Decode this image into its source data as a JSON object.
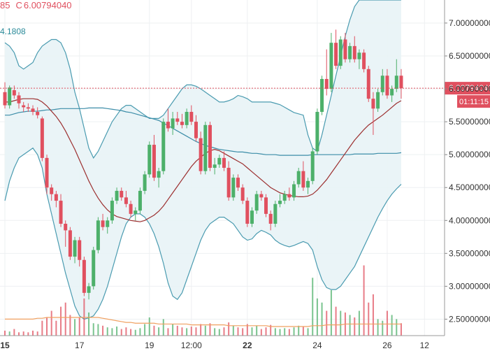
{
  "header": {
    "open_fragment": "85",
    "close_label": "C",
    "close_value": "6.00794040",
    "indicator_value": "4.1808"
  },
  "price_label": "6.00794040",
  "countdown": "01:11:15",
  "colors": {
    "up": "#4db06a",
    "down": "#e0505f",
    "band": "#4a9bb0",
    "band_fill": "#e8f3f6",
    "ma_short": "#9c2f2f",
    "ma_long": "#3c8da8",
    "vol_ma": "#f0a060"
  },
  "chart_data": {
    "type": "candlestick",
    "y_range": [
      2.25,
      7.35
    ],
    "y_ticks": [
      "7.00000000",
      "6.50000000",
      "6.00000000",
      "5.50000000",
      "5.00000000",
      "4.50000000",
      "4.00000000",
      "3.50000000",
      "3.00000000",
      "2.50000000"
    ],
    "y_tick_values": [
      7.0,
      6.5,
      6.0,
      5.5,
      5.0,
      4.5,
      4.0,
      3.5,
      3.0,
      2.5
    ],
    "x_ticks": [
      {
        "label": "15",
        "index": 0,
        "bold": true
      },
      {
        "label": "17",
        "index": 16,
        "bold": false
      },
      {
        "label": "19",
        "index": 31,
        "bold": false
      },
      {
        "label": "12:00",
        "index": 40,
        "bold": false
      },
      {
        "label": "22",
        "index": 52,
        "bold": true
      },
      {
        "label": "24",
        "index": 67,
        "bold": false
      },
      {
        "label": "26",
        "index": 82,
        "bold": false
      },
      {
        "label": "12",
        "index": 90,
        "bold": false
      }
    ],
    "candles": [
      [
        5.95,
        6.1,
        5.7,
        5.75
      ],
      [
        5.75,
        6.05,
        5.7,
        6.02
      ],
      [
        5.98,
        6.05,
        5.85,
        5.9
      ],
      [
        5.9,
        5.95,
        5.7,
        5.78
      ],
      [
        5.75,
        5.8,
        5.65,
        5.72
      ],
      [
        5.72,
        5.78,
        5.65,
        5.7
      ],
      [
        5.7,
        5.75,
        5.6,
        5.65
      ],
      [
        5.65,
        5.72,
        5.55,
        5.6
      ],
      [
        5.55,
        5.58,
        4.9,
        4.95
      ],
      [
        4.95,
        5.0,
        4.4,
        4.5
      ],
      [
        4.5,
        4.55,
        4.3,
        4.4
      ],
      [
        4.4,
        4.45,
        4.2,
        4.3
      ],
      [
        4.3,
        4.4,
        3.9,
        3.95
      ],
      [
        3.95,
        4.0,
        3.6,
        3.85
      ],
      [
        3.85,
        3.9,
        3.4,
        3.45
      ],
      [
        3.45,
        3.75,
        3.35,
        3.7
      ],
      [
        3.7,
        3.75,
        3.3,
        3.4
      ],
      [
        3.4,
        3.45,
        2.85,
        2.9
      ],
      [
        2.9,
        3.05,
        2.8,
        3.0
      ],
      [
        3.0,
        3.6,
        2.95,
        3.55
      ],
      [
        3.55,
        4.05,
        3.5,
        4.0
      ],
      [
        4.0,
        4.1,
        3.85,
        3.9
      ],
      [
        3.9,
        4.05,
        3.8,
        4.0
      ],
      [
        4.0,
        4.35,
        3.95,
        4.3
      ],
      [
        4.3,
        4.5,
        4.25,
        4.45
      ],
      [
        4.45,
        4.5,
        4.3,
        4.35
      ],
      [
        4.35,
        4.45,
        4.2,
        4.25
      ],
      [
        4.25,
        4.3,
        4.05,
        4.1
      ],
      [
        4.1,
        4.2,
        4.0,
        4.15
      ],
      [
        4.15,
        4.5,
        4.1,
        4.45
      ],
      [
        4.45,
        4.75,
        4.4,
        4.7
      ],
      [
        4.7,
        5.2,
        4.65,
        5.15
      ],
      [
        5.15,
        5.3,
        4.6,
        4.65
      ],
      [
        4.65,
        4.8,
        4.5,
        4.75
      ],
      [
        4.75,
        5.55,
        4.7,
        5.5
      ],
      [
        5.5,
        5.7,
        5.35,
        5.4
      ],
      [
        5.4,
        5.65,
        5.3,
        5.55
      ],
      [
        5.55,
        5.65,
        5.45,
        5.5
      ],
      [
        5.5,
        5.62,
        5.4,
        5.45
      ],
      [
        5.45,
        5.7,
        5.4,
        5.65
      ],
      [
        5.65,
        5.75,
        5.45,
        5.5
      ],
      [
        5.5,
        5.6,
        5.2,
        5.25
      ],
      [
        5.25,
        5.35,
        4.7,
        4.75
      ],
      [
        4.75,
        5.5,
        4.7,
        5.45
      ],
      [
        5.45,
        5.5,
        4.75,
        4.8
      ],
      [
        4.8,
        4.95,
        4.7,
        4.85
      ],
      [
        4.85,
        5.0,
        4.8,
        4.95
      ],
      [
        4.95,
        5.05,
        4.75,
        4.8
      ],
      [
        4.8,
        4.9,
        4.3,
        4.35
      ],
      [
        4.35,
        4.7,
        4.3,
        4.65
      ],
      [
        4.65,
        4.7,
        4.45,
        4.5
      ],
      [
        4.5,
        4.55,
        4.25,
        4.3
      ],
      [
        4.3,
        4.35,
        3.9,
        3.95
      ],
      [
        3.95,
        4.2,
        3.9,
        4.15
      ],
      [
        4.15,
        4.45,
        4.1,
        4.4
      ],
      [
        4.4,
        4.45,
        4.3,
        4.35
      ],
      [
        4.35,
        4.4,
        4.05,
        4.1
      ],
      [
        4.1,
        4.15,
        3.85,
        3.95
      ],
      [
        3.95,
        4.3,
        3.9,
        4.25
      ],
      [
        4.25,
        4.4,
        4.2,
        4.3
      ],
      [
        4.3,
        4.45,
        4.25,
        4.4
      ],
      [
        4.4,
        4.5,
        4.3,
        4.35
      ],
      [
        4.35,
        4.6,
        4.3,
        4.55
      ],
      [
        4.55,
        4.8,
        4.5,
        4.75
      ],
      [
        4.75,
        4.9,
        4.45,
        4.5
      ],
      [
        4.5,
        4.65,
        4.4,
        4.6
      ],
      [
        4.6,
        5.1,
        4.55,
        5.05
      ],
      [
        5.05,
        5.7,
        5.0,
        5.65
      ],
      [
        5.65,
        6.2,
        5.6,
        6.15
      ],
      [
        6.15,
        6.6,
        5.9,
        6.0
      ],
      [
        6.0,
        6.85,
        5.95,
        6.7
      ],
      [
        6.7,
        6.9,
        6.3,
        6.35
      ],
      [
        6.35,
        6.8,
        6.3,
        6.75
      ],
      [
        6.75,
        6.85,
        6.4,
        6.45
      ],
      [
        6.45,
        6.7,
        6.4,
        6.65
      ],
      [
        6.65,
        6.8,
        6.4,
        6.45
      ],
      [
        6.45,
        6.6,
        6.3,
        6.55
      ],
      [
        6.55,
        6.6,
        6.25,
        6.3
      ],
      [
        6.3,
        6.35,
        5.8,
        5.85
      ],
      [
        5.85,
        5.95,
        5.3,
        5.7
      ],
      [
        5.7,
        6.0,
        5.65,
        5.95
      ],
      [
        5.95,
        6.3,
        5.9,
        6.2
      ],
      [
        6.2,
        6.3,
        5.85,
        5.9
      ],
      [
        5.9,
        6.05,
        5.8,
        6.0
      ],
      [
        6.0,
        6.45,
        5.95,
        6.2
      ],
      [
        6.2,
        6.3,
        5.85,
        6.01
      ]
    ],
    "ma_short": [
      5.8,
      5.8,
      5.82,
      5.84,
      5.85,
      5.85,
      5.85,
      5.84,
      5.8,
      5.74,
      5.66,
      5.58,
      5.48,
      5.36,
      5.22,
      5.08,
      4.92,
      4.76,
      4.6,
      4.46,
      4.34,
      4.24,
      4.16,
      4.1,
      4.06,
      4.04,
      4.02,
      4.0,
      3.99,
      3.98,
      4.0,
      4.04,
      4.08,
      4.14,
      4.22,
      4.32,
      4.42,
      4.52,
      4.62,
      4.72,
      4.82,
      4.9,
      4.96,
      5.02,
      5.06,
      5.08,
      5.06,
      5.02,
      4.98,
      4.94,
      4.9,
      4.86,
      4.8,
      4.74,
      4.68,
      4.62,
      4.56,
      4.5,
      4.46,
      4.42,
      4.4,
      4.38,
      4.37,
      4.36,
      4.36,
      4.37,
      4.4,
      4.46,
      4.54,
      4.62,
      4.72,
      4.82,
      4.92,
      5.02,
      5.12,
      5.22,
      5.3,
      5.38,
      5.45,
      5.5,
      5.55,
      5.6,
      5.66,
      5.72,
      5.78,
      5.82
    ],
    "ma_long": [
      5.6,
      5.6,
      5.62,
      5.64,
      5.65,
      5.66,
      5.66,
      5.66,
      5.67,
      5.68,
      5.68,
      5.69,
      5.7,
      5.7,
      5.7,
      5.7,
      5.7,
      5.7,
      5.71,
      5.71,
      5.71,
      5.71,
      5.7,
      5.69,
      5.68,
      5.67,
      5.65,
      5.64,
      5.62,
      5.6,
      5.58,
      5.56,
      5.54,
      5.52,
      5.48,
      5.44,
      5.4,
      5.36,
      5.32,
      5.28,
      5.24,
      5.2,
      5.17,
      5.14,
      5.12,
      5.1,
      5.08,
      5.07,
      5.06,
      5.05,
      5.04,
      5.04,
      5.03,
      5.02,
      5.02,
      5.01,
      5.0,
      5.0,
      5.0,
      4.99,
      4.99,
      4.99,
      4.99,
      4.99,
      4.99,
      4.99,
      5.0,
      5.0,
      5.0,
      5.0,
      5.0,
      5.0,
      5.0,
      5.0,
      5.0,
      5.01,
      5.01,
      5.01,
      5.01,
      5.01,
      5.02,
      5.02,
      5.02,
      5.02,
      5.02,
      5.03
    ],
    "band_upper": [
      6.7,
      6.65,
      6.55,
      6.35,
      6.3,
      6.35,
      6.4,
      6.55,
      6.65,
      6.7,
      6.75,
      6.75,
      6.7,
      6.55,
      6.3,
      5.95,
      5.7,
      5.4,
      5.1,
      4.95,
      5.05,
      5.2,
      5.35,
      5.5,
      5.6,
      5.7,
      5.75,
      5.75,
      5.7,
      5.65,
      5.6,
      5.55,
      5.55,
      5.55,
      5.6,
      5.7,
      5.8,
      5.9,
      6.0,
      6.06,
      6.06,
      6.04,
      6.0,
      5.95,
      5.9,
      5.85,
      5.8,
      5.8,
      5.82,
      5.85,
      5.9,
      5.88,
      5.85,
      5.8,
      5.8,
      5.8,
      5.8,
      5.8,
      5.78,
      5.76,
      5.72,
      5.68,
      5.64,
      5.62,
      5.6,
      5.3,
      5.1,
      5.05,
      5.3,
      5.6,
      5.9,
      6.2,
      6.5,
      6.8,
      7.05,
      7.25,
      7.35,
      7.35,
      7.35,
      7.35,
      7.35,
      7.35,
      7.35,
      7.35,
      7.35,
      7.35
    ],
    "band_lower": [
      4.3,
      4.6,
      4.8,
      4.95,
      5.0,
      5.05,
      5.1,
      5.0,
      4.8,
      4.4,
      4.1,
      3.8,
      3.5,
      3.2,
      2.95,
      2.7,
      2.55,
      2.5,
      2.52,
      2.55,
      2.65,
      2.8,
      3.0,
      3.25,
      3.5,
      3.75,
      3.95,
      4.05,
      4.1,
      4.1,
      4.05,
      3.95,
      3.8,
      3.6,
      3.35,
      3.05,
      2.85,
      2.8,
      2.9,
      3.1,
      3.3,
      3.5,
      3.7,
      3.85,
      3.95,
      4.0,
      4.05,
      4.05,
      4.0,
      3.95,
      3.85,
      3.75,
      3.7,
      3.72,
      3.8,
      3.85,
      3.82,
      3.78,
      3.7,
      3.65,
      3.62,
      3.6,
      3.62,
      3.65,
      3.68,
      3.65,
      3.55,
      3.3,
      3.1,
      2.98,
      2.95,
      2.95,
      3.0,
      3.1,
      3.2,
      3.3,
      3.45,
      3.6,
      3.75,
      3.9,
      4.05,
      4.18,
      4.3,
      4.4,
      4.48,
      4.55
    ],
    "volume": [
      6,
      5,
      8,
      4,
      5,
      4,
      6,
      5,
      18,
      22,
      30,
      18,
      35,
      40,
      25,
      20,
      22,
      45,
      28,
      15,
      14,
      12,
      10,
      9,
      11,
      8,
      10,
      8,
      7,
      9,
      14,
      22,
      12,
      10,
      20,
      9,
      14,
      12,
      10,
      9,
      11,
      10,
      14,
      12,
      15,
      9,
      8,
      10,
      16,
      12,
      10,
      9,
      14,
      10,
      12,
      8,
      10,
      13,
      9,
      8,
      9,
      8,
      10,
      12,
      11,
      9,
      70,
      45,
      40,
      30,
      55,
      35,
      30,
      28,
      25,
      22,
      30,
      85,
      40,
      50,
      20,
      18,
      30,
      25,
      20,
      15
    ],
    "volume_ma": [
      20,
      20,
      20,
      20,
      20,
      20,
      20,
      21,
      21,
      22,
      22,
      22,
      22,
      22,
      22,
      22,
      22,
      22,
      22,
      22,
      22,
      21,
      20,
      19,
      18,
      17,
      16,
      16,
      15,
      15,
      15,
      15,
      15,
      14,
      14,
      14,
      14,
      14,
      14,
      14,
      13,
      13,
      13,
      13,
      13,
      13,
      13,
      13,
      12,
      12,
      12,
      12,
      12,
      12,
      12,
      12,
      12,
      11,
      11,
      11,
      11,
      11,
      11,
      11,
      11,
      11,
      12,
      12,
      12,
      13,
      13,
      13,
      13,
      14,
      14,
      14,
      14,
      14,
      14,
      14,
      14,
      14,
      14,
      14,
      14,
      14
    ]
  }
}
